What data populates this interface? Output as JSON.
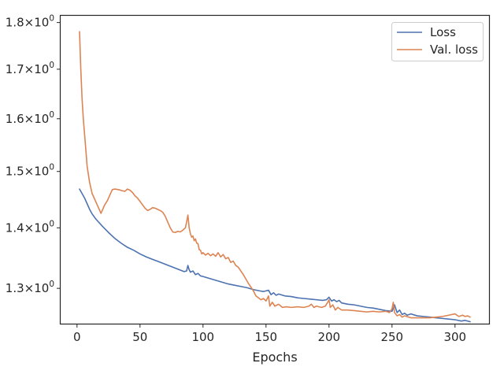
{
  "chart_data": {
    "type": "line",
    "title": "",
    "xlabel": "Epochs",
    "ylabel": "",
    "yscale": "log",
    "xlim": [
      -13,
      327
    ],
    "ylim": [
      1.245,
      1.815
    ],
    "xticks": [
      0,
      50,
      100,
      150,
      200,
      250,
      300
    ],
    "yticks": [
      {
        "value": 1.3,
        "label": "1.3×10",
        "exp": "0"
      },
      {
        "value": 1.4,
        "label": "1.4×10",
        "exp": "0"
      },
      {
        "value": 1.5,
        "label": "1.5×10",
        "exp": "0"
      },
      {
        "value": 1.6,
        "label": "1.6×10",
        "exp": "0"
      },
      {
        "value": 1.7,
        "label": "1.7×10",
        "exp": "0"
      },
      {
        "value": 1.8,
        "label": "1.8×10",
        "exp": "0"
      }
    ],
    "grid": false,
    "legend_position": "top-right",
    "series": [
      {
        "name": "Loss",
        "color": "#4c72b0",
        "points": [
          [
            2,
            1.468
          ],
          [
            4,
            1.46
          ],
          [
            6,
            1.452
          ],
          [
            8,
            1.442
          ],
          [
            10,
            1.432
          ],
          [
            12,
            1.424
          ],
          [
            15,
            1.415
          ],
          [
            20,
            1.403
          ],
          [
            25,
            1.392
          ],
          [
            30,
            1.382
          ],
          [
            35,
            1.374
          ],
          [
            40,
            1.367
          ],
          [
            45,
            1.362
          ],
          [
            50,
            1.356
          ],
          [
            55,
            1.351
          ],
          [
            60,
            1.347
          ],
          [
            65,
            1.343
          ],
          [
            70,
            1.339
          ],
          [
            75,
            1.335
          ],
          [
            80,
            1.331
          ],
          [
            85,
            1.327
          ],
          [
            87,
            1.328
          ],
          [
            88,
            1.337
          ],
          [
            89,
            1.33
          ],
          [
            90,
            1.326
          ],
          [
            92,
            1.328
          ],
          [
            94,
            1.322
          ],
          [
            96,
            1.324
          ],
          [
            98,
            1.32
          ],
          [
            100,
            1.319
          ],
          [
            105,
            1.316
          ],
          [
            110,
            1.313
          ],
          [
            115,
            1.31
          ],
          [
            120,
            1.307
          ],
          [
            125,
            1.305
          ],
          [
            130,
            1.303
          ],
          [
            135,
            1.301
          ],
          [
            140,
            1.298
          ],
          [
            145,
            1.296
          ],
          [
            148,
            1.295
          ],
          [
            150,
            1.296
          ],
          [
            152,
            1.297
          ],
          [
            154,
            1.29
          ],
          [
            156,
            1.293
          ],
          [
            158,
            1.289
          ],
          [
            160,
            1.291
          ],
          [
            165,
            1.288
          ],
          [
            170,
            1.287
          ],
          [
            175,
            1.285
          ],
          [
            180,
            1.284
          ],
          [
            185,
            1.283
          ],
          [
            190,
            1.282
          ],
          [
            195,
            1.281
          ],
          [
            198,
            1.282
          ],
          [
            200,
            1.286
          ],
          [
            202,
            1.28
          ],
          [
            204,
            1.282
          ],
          [
            206,
            1.279
          ],
          [
            208,
            1.281
          ],
          [
            210,
            1.277
          ],
          [
            215,
            1.275
          ],
          [
            220,
            1.274
          ],
          [
            225,
            1.272
          ],
          [
            230,
            1.27
          ],
          [
            235,
            1.269
          ],
          [
            240,
            1.267
          ],
          [
            245,
            1.265
          ],
          [
            250,
            1.264
          ],
          [
            252,
            1.274
          ],
          [
            254,
            1.262
          ],
          [
            256,
            1.266
          ],
          [
            258,
            1.259
          ],
          [
            260,
            1.261
          ],
          [
            262,
            1.258
          ],
          [
            265,
            1.26
          ],
          [
            270,
            1.257
          ],
          [
            275,
            1.256
          ],
          [
            280,
            1.255
          ],
          [
            285,
            1.254
          ],
          [
            290,
            1.253
          ],
          [
            295,
            1.252
          ],
          [
            300,
            1.251
          ],
          [
            305,
            1.249
          ],
          [
            308,
            1.25
          ],
          [
            312,
            1.248
          ]
        ]
      },
      {
        "name": "Val. loss",
        "color": "#dd8452",
        "points": [
          [
            2,
            1.78
          ],
          [
            3,
            1.7
          ],
          [
            4,
            1.64
          ],
          [
            5,
            1.6
          ],
          [
            6,
            1.57
          ],
          [
            7,
            1.54
          ],
          [
            8,
            1.51
          ],
          [
            10,
            1.48
          ],
          [
            12,
            1.46
          ],
          [
            14,
            1.45
          ],
          [
            16,
            1.44
          ],
          [
            18,
            1.43
          ],
          [
            19,
            1.425
          ],
          [
            20,
            1.43
          ],
          [
            22,
            1.44
          ],
          [
            24,
            1.447
          ],
          [
            26,
            1.457
          ],
          [
            28,
            1.467
          ],
          [
            30,
            1.468
          ],
          [
            33,
            1.467
          ],
          [
            36,
            1.465
          ],
          [
            38,
            1.464
          ],
          [
            40,
            1.468
          ],
          [
            42,
            1.466
          ],
          [
            44,
            1.462
          ],
          [
            46,
            1.456
          ],
          [
            48,
            1.452
          ],
          [
            50,
            1.446
          ],
          [
            52,
            1.44
          ],
          [
            54,
            1.434
          ],
          [
            56,
            1.43
          ],
          [
            58,
            1.432
          ],
          [
            60,
            1.435
          ],
          [
            62,
            1.434
          ],
          [
            64,
            1.432
          ],
          [
            66,
            1.43
          ],
          [
            68,
            1.427
          ],
          [
            70,
            1.42
          ],
          [
            72,
            1.41
          ],
          [
            74,
            1.4
          ],
          [
            76,
            1.393
          ],
          [
            78,
            1.392
          ],
          [
            80,
            1.394
          ],
          [
            82,
            1.393
          ],
          [
            84,
            1.396
          ],
          [
            86,
            1.4
          ],
          [
            87,
            1.41
          ],
          [
            88,
            1.422
          ],
          [
            89,
            1.4
          ],
          [
            90,
            1.39
          ],
          [
            91,
            1.384
          ],
          [
            92,
            1.386
          ],
          [
            93,
            1.378
          ],
          [
            94,
            1.381
          ],
          [
            95,
            1.374
          ],
          [
            96,
            1.373
          ],
          [
            97,
            1.363
          ],
          [
            98,
            1.362
          ],
          [
            99,
            1.356
          ],
          [
            100,
            1.358
          ],
          [
            102,
            1.354
          ],
          [
            104,
            1.357
          ],
          [
            106,
            1.353
          ],
          [
            108,
            1.356
          ],
          [
            110,
            1.352
          ],
          [
            112,
            1.358
          ],
          [
            114,
            1.351
          ],
          [
            116,
            1.355
          ],
          [
            118,
            1.348
          ],
          [
            120,
            1.35
          ],
          [
            122,
            1.342
          ],
          [
            124,
            1.344
          ],
          [
            126,
            1.337
          ],
          [
            128,
            1.334
          ],
          [
            130,
            1.328
          ],
          [
            132,
            1.322
          ],
          [
            134,
            1.315
          ],
          [
            136,
            1.308
          ],
          [
            138,
            1.302
          ],
          [
            140,
            1.296
          ],
          [
            142,
            1.288
          ],
          [
            144,
            1.285
          ],
          [
            146,
            1.282
          ],
          [
            148,
            1.284
          ],
          [
            150,
            1.28
          ],
          [
            152,
            1.288
          ],
          [
            153,
            1.272
          ],
          [
            155,
            1.278
          ],
          [
            157,
            1.272
          ],
          [
            160,
            1.275
          ],
          [
            163,
            1.27
          ],
          [
            166,
            1.271
          ],
          [
            170,
            1.27
          ],
          [
            175,
            1.271
          ],
          [
            180,
            1.27
          ],
          [
            184,
            1.272
          ],
          [
            186,
            1.275
          ],
          [
            188,
            1.27
          ],
          [
            190,
            1.272
          ],
          [
            194,
            1.27
          ],
          [
            197,
            1.272
          ],
          [
            199,
            1.278
          ],
          [
            200,
            1.282
          ],
          [
            201,
            1.27
          ],
          [
            203,
            1.274
          ],
          [
            205,
            1.266
          ],
          [
            207,
            1.27
          ],
          [
            210,
            1.266
          ],
          [
            215,
            1.266
          ],
          [
            220,
            1.265
          ],
          [
            225,
            1.264
          ],
          [
            230,
            1.263
          ],
          [
            235,
            1.264
          ],
          [
            240,
            1.263
          ],
          [
            245,
            1.264
          ],
          [
            248,
            1.262
          ],
          [
            250,
            1.268
          ],
          [
            251,
            1.278
          ],
          [
            252,
            1.262
          ],
          [
            254,
            1.257
          ],
          [
            256,
            1.259
          ],
          [
            258,
            1.255
          ],
          [
            260,
            1.257
          ],
          [
            265,
            1.254
          ],
          [
            270,
            1.254
          ],
          [
            275,
            1.254
          ],
          [
            280,
            1.254
          ],
          [
            285,
            1.255
          ],
          [
            290,
            1.256
          ],
          [
            295,
            1.258
          ],
          [
            300,
            1.26
          ],
          [
            303,
            1.256
          ],
          [
            306,
            1.258
          ],
          [
            308,
            1.256
          ],
          [
            310,
            1.257
          ],
          [
            312,
            1.255
          ]
        ]
      }
    ]
  }
}
